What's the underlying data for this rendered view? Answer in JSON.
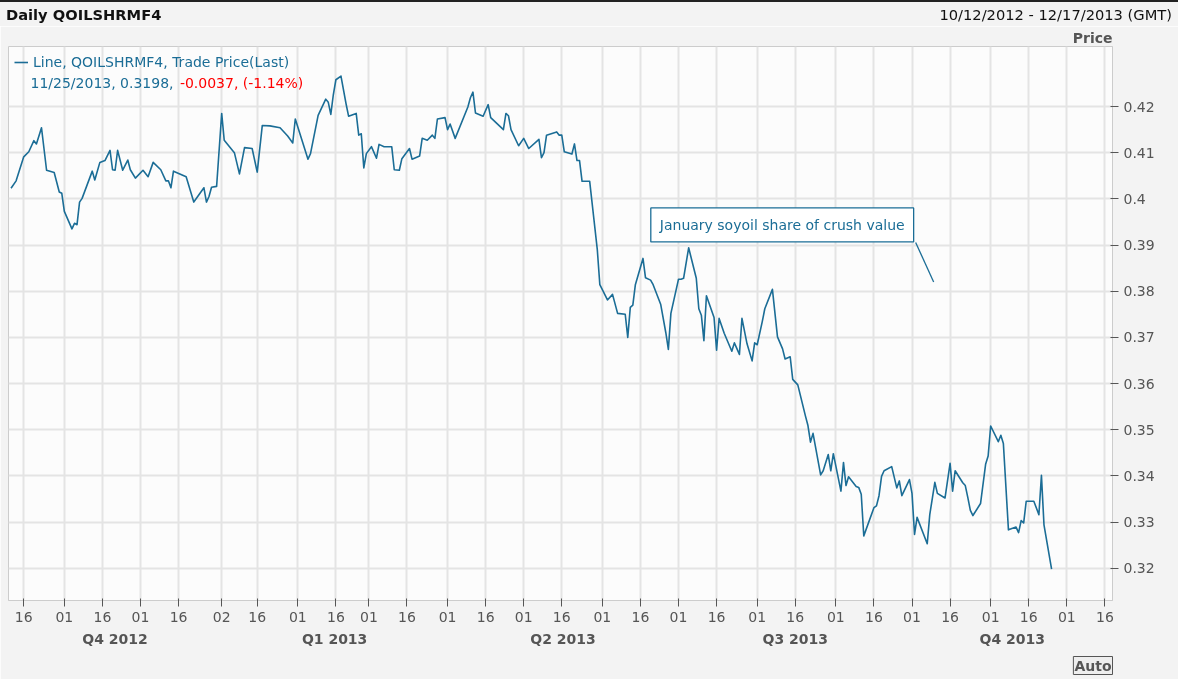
{
  "chart_data": {
    "type": "line",
    "title": "Daily QOILSHRMF4",
    "subtitle": "10/12/2012 - 12/17/2013 (GMT)",
    "ylabel": "Price",
    "xlim": [
      "2012-10-10",
      "2013-12-19"
    ],
    "xticks": [
      {
        "value": "2012-10-16",
        "label": "16"
      },
      {
        "value": "2012-11-01",
        "label": "01"
      },
      {
        "value": "2012-11-16",
        "label": "16"
      },
      {
        "value": "2012-12-01",
        "label": "01"
      },
      {
        "value": "2012-12-16",
        "label": "16"
      },
      {
        "value": "2013-01-02",
        "label": "02"
      },
      {
        "value": "2013-01-16",
        "label": "16"
      },
      {
        "value": "2013-02-01",
        "label": "01"
      },
      {
        "value": "2013-02-16",
        "label": "16"
      },
      {
        "value": "2013-03-01",
        "label": "01"
      },
      {
        "value": "2013-03-16",
        "label": "16"
      },
      {
        "value": "2013-04-01",
        "label": "01"
      },
      {
        "value": "2013-04-16",
        "label": "16"
      },
      {
        "value": "2013-05-01",
        "label": "01"
      },
      {
        "value": "2013-05-16",
        "label": "16"
      },
      {
        "value": "2013-06-01",
        "label": "01"
      },
      {
        "value": "2013-06-16",
        "label": "16"
      },
      {
        "value": "2013-07-01",
        "label": "01"
      },
      {
        "value": "2013-07-16",
        "label": "16"
      },
      {
        "value": "2013-08-01",
        "label": "01"
      },
      {
        "value": "2013-08-16",
        "label": "16"
      },
      {
        "value": "2013-09-01",
        "label": "01"
      },
      {
        "value": "2013-09-16",
        "label": "16"
      },
      {
        "value": "2013-10-01",
        "label": "01"
      },
      {
        "value": "2013-10-16",
        "label": "16"
      },
      {
        "value": "2013-11-01",
        "label": "01"
      },
      {
        "value": "2013-11-16",
        "label": "16"
      },
      {
        "value": "2013-12-01",
        "label": "01"
      },
      {
        "value": "2013-12-16",
        "label": "16"
      }
    ],
    "ylim": [
      0.313,
      0.433
    ],
    "yticks": [
      0.32,
      0.33,
      0.34,
      0.35,
      0.36,
      0.37,
      0.38,
      0.39,
      0.4,
      0.41,
      0.42
    ],
    "grid": true,
    "legend": "top left",
    "annotations": [
      "11/25/2013, 0.3198,",
      "-0.0037, (-1.14%)",
      "January soyoil share of crush value",
      "Q4 2012",
      "Q1 2013",
      "Q2 2013",
      "Q3 2013",
      "Q4 2013",
      "Auto"
    ],
    "series": [
      {
        "name": "Line, QOILSHRMF4, Trade Price(Last)",
        "color": "#1b6d96",
        "x": [
          "2012-10-11",
          "2012-10-13",
          "2012-10-16",
          "2012-10-18",
          "2012-10-20",
          "2012-10-21",
          "2012-10-23",
          "2012-10-25",
          "2012-10-28",
          "2012-10-30",
          "2012-10-31",
          "2012-11-01",
          "2012-11-04",
          "2012-11-05",
          "2012-11-06",
          "2012-11-07",
          "2012-11-08",
          "2012-11-12",
          "2012-11-13",
          "2012-11-15",
          "2012-11-17",
          "2012-11-19",
          "2012-11-20",
          "2012-11-21",
          "2012-11-22",
          "2012-11-24",
          "2012-11-26",
          "2012-11-27",
          "2012-11-29",
          "2012-12-02",
          "2012-12-04",
          "2012-12-06",
          "2012-12-09",
          "2012-12-11",
          "2012-12-12",
          "2012-12-13",
          "2012-12-14",
          "2012-12-19",
          "2012-12-22",
          "2012-12-26",
          "2012-12-27",
          "2012-12-28",
          "2012-12-29",
          "2012-12-31",
          "2013-01-02",
          "2013-01-03",
          "2013-01-07",
          "2013-01-09",
          "2013-01-11",
          "2013-01-14",
          "2013-01-16",
          "2013-01-18",
          "2013-01-21",
          "2013-01-25",
          "2013-01-28",
          "2013-01-30",
          "2013-01-31",
          "2013-02-05",
          "2013-02-06",
          "2013-02-09",
          "2013-02-12",
          "2013-02-13",
          "2013-02-14",
          "2013-02-15",
          "2013-02-16",
          "2013-02-18",
          "2013-02-20",
          "2013-02-21",
          "2013-02-24",
          "2013-02-25",
          "2013-02-26",
          "2013-02-27",
          "2013-02-28",
          "2013-03-02",
          "2013-03-04",
          "2013-03-05",
          "2013-03-07",
          "2013-03-10",
          "2013-03-11",
          "2013-03-13",
          "2013-03-14",
          "2013-03-17",
          "2013-03-18",
          "2013-03-21",
          "2013-03-22",
          "2013-03-24",
          "2013-03-26",
          "2013-03-27",
          "2013-03-28",
          "2013-03-31",
          "2013-04-01",
          "2013-04-02",
          "2013-04-04",
          "2013-04-09",
          "2013-04-10",
          "2013-04-11",
          "2013-04-12",
          "2013-04-15",
          "2013-04-17",
          "2013-04-18",
          "2013-04-23",
          "2013-04-24",
          "2013-04-25",
          "2013-04-26",
          "2013-04-29",
          "2013-05-01",
          "2013-05-03",
          "2013-05-07",
          "2013-05-08",
          "2013-05-09",
          "2013-05-10",
          "2013-05-14",
          "2013-05-15",
          "2013-05-16",
          "2013-05-17",
          "2013-05-20",
          "2013-05-21",
          "2013-05-22",
          "2013-05-23",
          "2013-05-24",
          "2013-05-27",
          "2013-05-30",
          "2013-05-31",
          "2013-06-03",
          "2013-06-05",
          "2013-06-07",
          "2013-06-10",
          "2013-06-11",
          "2013-06-12",
          "2013-06-13",
          "2013-06-14",
          "2013-06-17",
          "2013-06-18",
          "2013-06-20",
          "2013-06-21",
          "2013-06-24",
          "2013-06-26",
          "2013-06-27",
          "2013-06-28",
          "2013-07-01",
          "2013-07-02",
          "2013-07-03",
          "2013-07-05",
          "2013-07-08",
          "2013-07-09",
          "2013-07-10",
          "2013-07-11",
          "2013-07-12",
          "2013-07-15",
          "2013-07-16",
          "2013-07-17",
          "2013-07-19",
          "2013-07-22",
          "2013-07-23",
          "2013-07-25",
          "2013-07-26",
          "2013-07-28",
          "2013-07-30",
          "2013-07-31",
          "2013-08-01",
          "2013-08-03",
          "2013-08-04",
          "2013-08-07",
          "2013-08-09",
          "2013-08-11",
          "2013-08-12",
          "2013-08-14",
          "2013-08-15",
          "2013-08-17",
          "2013-08-20",
          "2013-08-21",
          "2013-08-22",
          "2013-08-23",
          "2013-08-26",
          "2013-08-27",
          "2013-08-29",
          "2013-08-30",
          "2013-08-31",
          "2013-09-03",
          "2013-09-04",
          "2013-09-05",
          "2013-09-06",
          "2013-09-09",
          "2013-09-10",
          "2013-09-11",
          "2013-09-12",
          "2013-09-16",
          "2013-09-17",
          "2013-09-18",
          "2013-09-19",
          "2013-09-20",
          "2013-09-23",
          "2013-09-25",
          "2013-09-26",
          "2013-09-27",
          "2013-09-30",
          "2013-10-01",
          "2013-10-02",
          "2013-10-03",
          "2013-10-07",
          "2013-10-08",
          "2013-10-10",
          "2013-10-11",
          "2013-10-14",
          "2013-10-16",
          "2013-10-17",
          "2013-10-18",
          "2013-10-21",
          "2013-10-22",
          "2013-10-23",
          "2013-10-24",
          "2013-10-25",
          "2013-10-28",
          "2013-10-30",
          "2013-10-31",
          "2013-11-01",
          "2013-11-04",
          "2013-11-05",
          "2013-11-06",
          "2013-11-08",
          "2013-11-11",
          "2013-11-12",
          "2013-11-13",
          "2013-11-14",
          "2013-11-15",
          "2013-11-18",
          "2013-11-20",
          "2013-11-21",
          "2013-11-22",
          "2013-11-25"
        ],
        "values": [
          0.4023,
          0.4039,
          0.4091,
          0.4102,
          0.4126,
          0.4119,
          0.4154,
          0.4062,
          0.4057,
          0.4015,
          0.4012,
          0.3973,
          0.3935,
          0.3947,
          0.3944,
          0.3993,
          0.4001,
          0.406,
          0.4041,
          0.4079,
          0.4083,
          0.4105,
          0.4063,
          0.4062,
          0.4105,
          0.4062,
          0.4084,
          0.4063,
          0.4045,
          0.4062,
          0.4048,
          0.4079,
          0.4063,
          0.4039,
          0.4039,
          0.4024,
          0.406,
          0.4048,
          0.3993,
          0.4024,
          0.3993,
          0.4005,
          0.4025,
          0.4027,
          0.4185,
          0.4127,
          0.41,
          0.4054,
          0.4111,
          0.4109,
          0.4058,
          0.4159,
          0.4158,
          0.4154,
          0.4136,
          0.4121,
          0.4173,
          0.4086,
          0.4098,
          0.4181,
          0.4216,
          0.4209,
          0.4183,
          0.4226,
          0.4258,
          0.4266,
          0.4206,
          0.4179,
          0.4185,
          0.4138,
          0.4141,
          0.4067,
          0.4098,
          0.4113,
          0.4088,
          0.4118,
          0.4113,
          0.4113,
          0.4063,
          0.4062,
          0.4087,
          0.4109,
          0.4086,
          0.4093,
          0.4131,
          0.4127,
          0.4138,
          0.4131,
          0.4173,
          0.4176,
          0.415,
          0.4162,
          0.4131,
          0.4199,
          0.4219,
          0.4231,
          0.4186,
          0.4179,
          0.4204,
          0.4176,
          0.415,
          0.4185,
          0.418,
          0.415,
          0.4115,
          0.4131,
          0.4109,
          0.4129,
          0.4089,
          0.41,
          0.4138,
          0.4145,
          0.4138,
          0.4138,
          0.4102,
          0.4097,
          0.4119,
          0.4083,
          0.4083,
          0.4038,
          0.4038,
          0.389,
          0.3814,
          0.3781,
          0.3793,
          0.3752,
          0.375,
          0.37,
          0.3765,
          0.377,
          0.3814,
          0.3871,
          0.3829,
          0.3824,
          0.3814,
          0.3771,
          0.371,
          0.3674,
          0.3752,
          0.3826,
          0.3826,
          0.3828,
          0.3894,
          0.3828,
          0.3762,
          0.3748,
          0.3693,
          0.379,
          0.3743,
          0.3672,
          0.3741,
          0.3709,
          0.367,
          0.3688,
          0.3663,
          0.3741,
          0.3686,
          0.3649,
          0.3688,
          0.3684,
          0.3734,
          0.3762,
          0.3804,
          0.3701,
          0.3675,
          0.3653,
          0.3658,
          0.3609,
          0.3597,
          0.353,
          0.3509,
          0.3473,
          0.3492,
          0.3402,
          0.3411,
          0.3446,
          0.3411,
          0.3448,
          0.3367,
          0.3429,
          0.3379,
          0.3398,
          0.3377,
          0.3375,
          0.336,
          0.327,
          0.3331,
          0.3335,
          0.3357,
          0.3399,
          0.3411,
          0.342,
          0.3374,
          0.3389,
          0.3357,
          0.3392,
          0.3362,
          0.3273,
          0.331,
          0.3253,
          0.3316,
          0.3386,
          0.3362,
          0.3352,
          0.3427,
          0.3367,
          0.3411,
          0.3385,
          0.3379,
          0.3353,
          0.3325,
          0.3314,
          0.334,
          0.3425,
          0.3443,
          0.3508,
          0.3474,
          0.3488,
          0.347,
          0.3283,
          0.3289,
          0.3277,
          0.3303,
          0.3298,
          0.3345,
          0.3345,
          0.3316,
          0.3401,
          0.3294,
          0.3198
        ]
      }
    ]
  }
}
